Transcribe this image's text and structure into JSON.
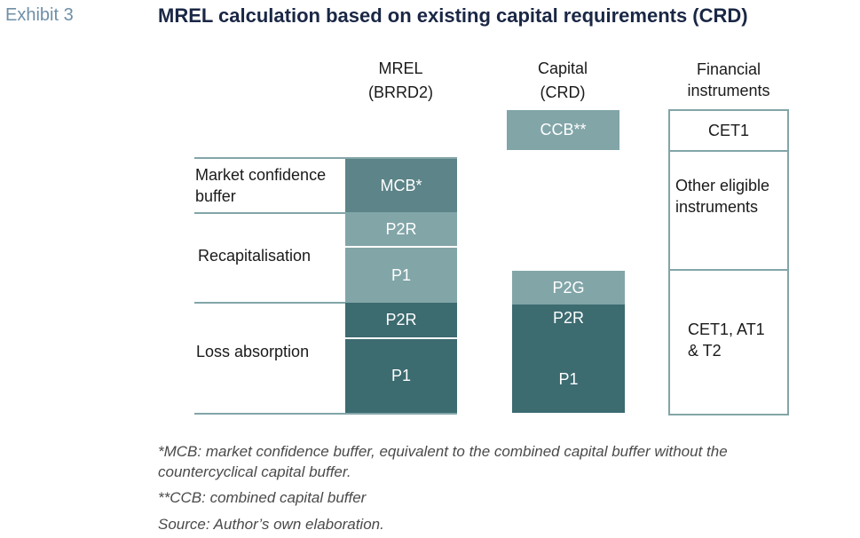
{
  "exhibit_label": "Exhibit 3",
  "title": "MREL calculation based on existing capital requirements (CRD)",
  "columns": {
    "mrel": {
      "line1": "MREL",
      "line2": "(BRRD2)"
    },
    "capital": {
      "line1": "Capital",
      "line2": "(CRD)"
    },
    "financial": {
      "line1": "Financial",
      "line2": "instruments"
    }
  },
  "row_labels": {
    "market_confidence": {
      "line1": "Market confidence",
      "line2": "buffer"
    },
    "recapitalisation": "Recapitalisation",
    "loss_absorption": "Loss absorption"
  },
  "mrel_boxes": {
    "mcb": "MCB*",
    "recap_p2r": "P2R",
    "recap_p1": "P1",
    "loss_p2r": "P2R",
    "loss_p1": "P1"
  },
  "capital_boxes": {
    "ccb": "CCB**",
    "p2g": "P2G",
    "p2r": "P2R",
    "p1": "P1"
  },
  "financial_cells": {
    "cet1": "CET1",
    "other": {
      "line1": "Other eligible",
      "line2": "instruments"
    },
    "cet1_at1_t2": {
      "line1": "CET1, AT1",
      "line2": "& T2"
    }
  },
  "footnotes": {
    "mcb_line1": "*MCB: market confidence buffer, equivalent to the combined capital buffer without the",
    "mcb_line2": "countercyclical capital buffer.",
    "ccb": "**CCB: combined capital buffer",
    "source": "Source: Author’s own elaboration."
  },
  "colors": {
    "light": "#82a5a8",
    "mid": "#5d8488",
    "dark": "#3c6b70",
    "title": "#1a2745",
    "exhibit": "#6f8fa6"
  }
}
